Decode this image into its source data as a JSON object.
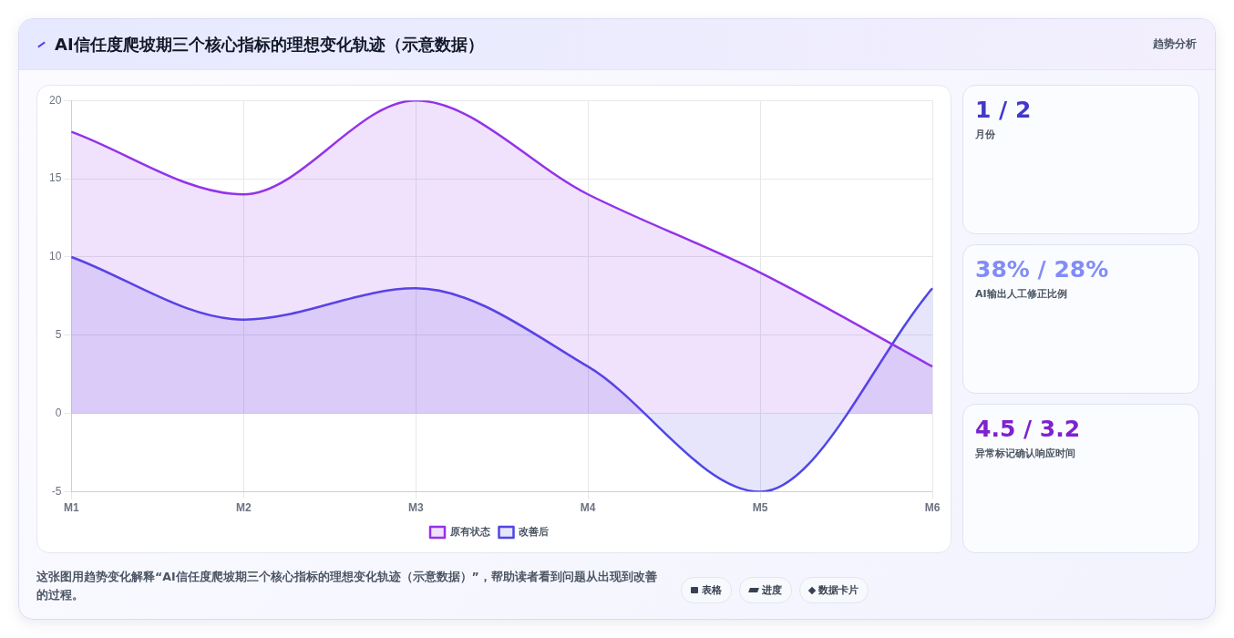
{
  "chart_data": [
    {
      "type": "line",
      "title": "AI信任度爬坡期三个核心指标的理想变化轨迹（示意数据）",
      "categories": [
        "M1",
        "M2",
        "M3",
        "M4",
        "M5",
        "M6"
      ],
      "series": [
        {
          "type": "area",
          "name": "原有状态",
          "color": "#9333ea",
          "values": [
            18,
            14,
            20,
            14,
            9,
            3
          ]
        },
        {
          "type": "area",
          "name": "改善后",
          "color": "#4f46e5",
          "values": [
            10,
            6,
            8,
            3,
            -5,
            8
          ]
        }
      ],
      "ylim": [
        -5,
        20
      ],
      "yticks": [
        -5,
        0,
        5,
        10,
        15,
        20
      ],
      "grid": true,
      "legend": "bottom",
      "marker": "none",
      "line_style": "solid",
      "annotations": [
        "这张图用趋势变化解释“AI信任度爬坡期三个核心指标的理想变化轨迹（示意数据）”，帮助读者看到问题从出现到改善的过程。",
        "表格",
        "进度",
        "数据卡片"
      ]
    },
    {
      "type": "other",
      "title": "1 / 2",
      "subtitle": "月份",
      "annotations": [
        "趋势分析"
      ]
    },
    {
      "type": "other",
      "title": "38% / 28%",
      "subtitle": "AI输出人工修正比例"
    },
    {
      "type": "other",
      "title": "4.5 / 3.2",
      "subtitle": "异常标记确认响应时间"
    }
  ]
}
